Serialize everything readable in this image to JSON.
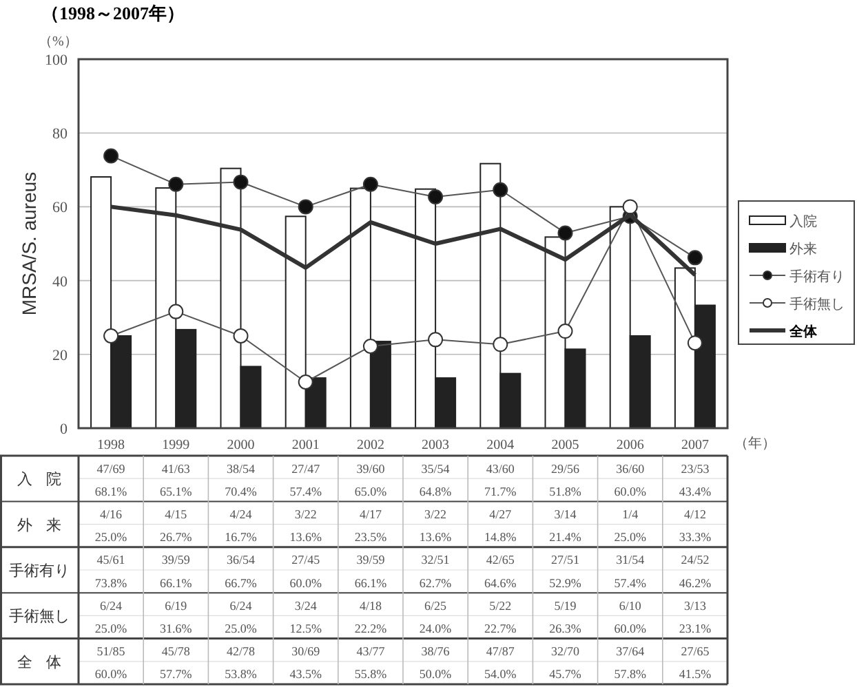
{
  "chart_data": {
    "type": "bar",
    "title": "（1998～2007年）",
    "ylabel": "MRSA/S. aureus",
    "xlabel": "（年）",
    "annotations": [
      "（%）"
    ],
    "categories": [
      "1998",
      "1999",
      "2000",
      "2001",
      "2002",
      "2003",
      "2004",
      "2005",
      "2006",
      "2007"
    ],
    "ylim": [
      0,
      100
    ],
    "yticks": [
      0,
      20,
      40,
      60,
      80,
      100
    ],
    "grid": "y",
    "legend": "right",
    "series": [
      {
        "name": "入院",
        "color": "#ffffff",
        "values": [
          68.1,
          65.1,
          70.4,
          57.4,
          65.0,
          64.8,
          71.7,
          51.8,
          60.0,
          43.4
        ],
        "value_labels": [
          "47/69\n68.1%",
          "41/63\n65.1%",
          "38/54\n70.4%",
          "27/47\n57.4%",
          "39/60\n65.0%",
          "35/54\n64.8%",
          "43/60\n71.7%",
          "29/56\n51.8%",
          "36/60\n60.0%",
          "23/53\n43.4%"
        ]
      },
      {
        "name": "外来",
        "color": "#222222",
        "values": [
          25.0,
          26.7,
          16.7,
          13.6,
          23.5,
          13.6,
          14.8,
          21.4,
          25.0,
          33.3
        ],
        "value_labels": [
          "4/16\n25.0%",
          "4/15\n26.7%",
          "4/24\n16.7%",
          "3/22\n13.6%",
          "4/17\n23.5%",
          "3/22\n13.6%",
          "4/27\n14.8%",
          "3/14\n21.4%",
          "1/4\n25.0%",
          "4/12\n33.3%"
        ]
      },
      {
        "name": "手術有り",
        "type": "line",
        "marker": "circle",
        "color": "#111111",
        "values": [
          73.8,
          66.1,
          66.7,
          60.0,
          66.1,
          62.7,
          64.6,
          52.9,
          57.4,
          46.2
        ],
        "value_labels": [
          "45/61\n73.8%",
          "39/59\n66.1%",
          "36/54\n66.7%",
          "27/45\n60.0%",
          "39/59\n66.1%",
          "32/51\n62.7%",
          "42/65\n64.6%",
          "27/51\n52.9%",
          "31/54\n57.4%",
          "24/52\n46.2%"
        ]
      },
      {
        "name": "手術無し",
        "type": "line",
        "marker": "circle",
        "color": "#ffffff",
        "values": [
          25.0,
          31.6,
          25.0,
          12.5,
          22.2,
          24.0,
          22.7,
          26.3,
          60.0,
          23.1
        ],
        "value_labels": [
          "6/24\n25.0%",
          "6/19\n31.6%",
          "6/24\n25.0%",
          "3/24\n12.5%",
          "4/18\n22.2%",
          "6/25\n24.0%",
          "5/22\n22.7%",
          "5/19\n26.3%",
          "6/10\n60.0%",
          "3/13\n23.1%"
        ]
      },
      {
        "name": "全体",
        "type": "line",
        "marker": "none",
        "color": "#333333",
        "values": [
          60.0,
          57.7,
          53.8,
          43.5,
          55.8,
          50.0,
          54.0,
          45.7,
          57.8,
          41.5
        ],
        "value_labels": [
          "51/85\n60.0%",
          "45/78\n57.7%",
          "42/78\n53.8%",
          "30/69\n43.5%",
          "43/77\n55.8%",
          "38/76\n50.0%",
          "47/87\n54.0%",
          "32/70\n45.7%",
          "37/64\n57.8%",
          "27/65\n41.5%"
        ]
      }
    ]
  }
}
